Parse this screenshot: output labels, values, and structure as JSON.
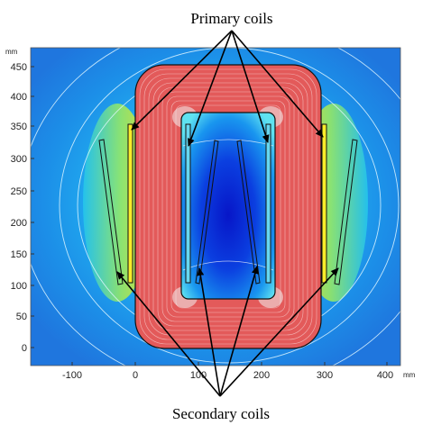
{
  "labels": {
    "primary": "Primary coils",
    "secondary": "Secondary coils"
  },
  "axes": {
    "unit_x": "mm",
    "unit_y": "mm",
    "x_ticks": [
      "-100",
      "0",
      "100",
      "200",
      "300",
      "400"
    ],
    "y_ticks": [
      "450",
      "400",
      "350",
      "300",
      "250",
      "200",
      "150",
      "100",
      "50",
      "0"
    ]
  },
  "colors": {
    "field_low": "#0a1fd0",
    "field_mid": "#1aa0f0",
    "field_high": "#f6e71a",
    "core": "#e45d5d",
    "core_lines": "#ffffff",
    "outline": "#111111",
    "arrow": "#000000"
  }
}
